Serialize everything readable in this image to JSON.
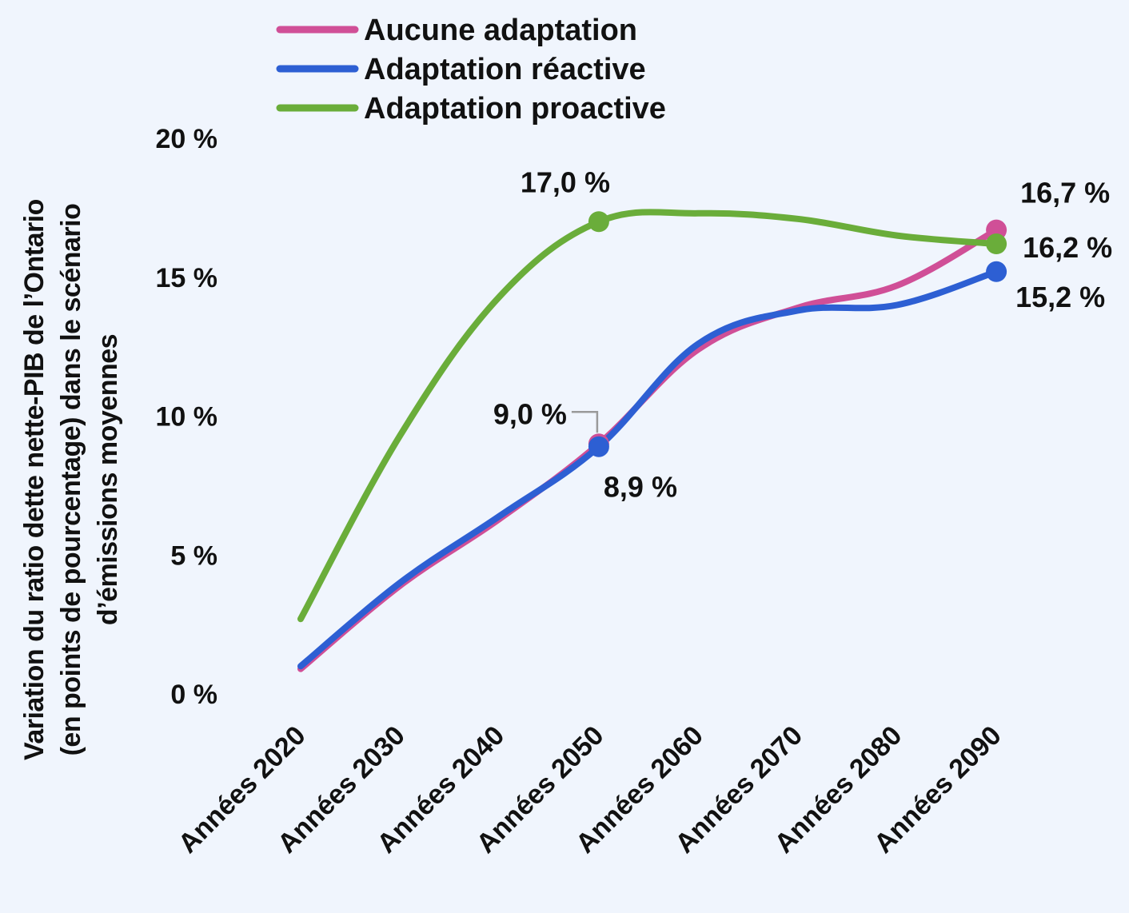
{
  "chart_data": {
    "type": "line",
    "categories": [
      "Années 2020",
      "Années 2030",
      "Années 2040",
      "Années 2050",
      "Années 2060",
      "Années 2070",
      "Années 2080",
      "Années 2090"
    ],
    "ylabel_lines": [
      "Variation du ratio dette nette-PIB de l’Ontario",
      "(en points de pourcentage) dans le scénario",
      "d’émissions moyennes"
    ],
    "ylim": [
      0,
      20
    ],
    "yticks": [
      {
        "value": 0,
        "label": "0 %"
      },
      {
        "value": 5,
        "label": "5 %"
      },
      {
        "value": 10,
        "label": "10 %"
      },
      {
        "value": 15,
        "label": "15 %"
      },
      {
        "value": 20,
        "label": "20 %"
      }
    ],
    "grid": false,
    "legend_position": "top",
    "series": [
      {
        "name": "Aucune adaptation",
        "color": "#d04f97",
        "values": [
          0.9,
          3.9,
          6.3,
          9.0,
          12.4,
          13.9,
          14.7,
          16.7
        ]
      },
      {
        "name": "Adaptation réactive",
        "color": "#2d5fd3",
        "values": [
          1.0,
          4.0,
          6.4,
          8.9,
          12.6,
          13.8,
          14.0,
          15.2
        ]
      },
      {
        "name": "Adaptation proactive",
        "color": "#6aad3a",
        "values": [
          2.7,
          9.3,
          14.3,
          17.0,
          17.3,
          17.1,
          16.5,
          16.2
        ]
      }
    ],
    "annotations": [
      {
        "series": 0,
        "index": 3,
        "label": "9,0 %"
      },
      {
        "series": 1,
        "index": 3,
        "label": "8,9 %"
      },
      {
        "series": 2,
        "index": 3,
        "label": "17,0 %"
      },
      {
        "series": 0,
        "index": 7,
        "label": "16,7 %"
      },
      {
        "series": 2,
        "index": 7,
        "label": "16,2 %"
      },
      {
        "series": 1,
        "index": 7,
        "label": "15,2 %"
      }
    ]
  }
}
